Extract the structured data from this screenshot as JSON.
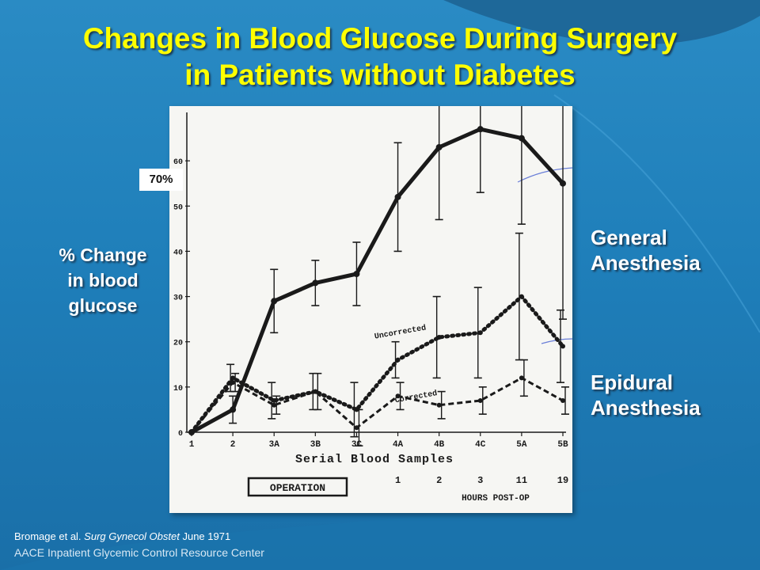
{
  "title_line1": "Changes in Blood Glucose During Surgery",
  "title_line2": "in Patients without Diabetes",
  "ylabel_lines": [
    "% Change",
    "in blood",
    "glucose"
  ],
  "badge": "70%",
  "annotation_general_lines": [
    "General",
    "Anesthesia"
  ],
  "annotation_epidural_lines": [
    "Epidural",
    "Anesthesia"
  ],
  "citation_authors": "Bromage et al.",
  "citation_journal": "Surg Gynecol Obstet",
  "citation_date": "June 1971",
  "center_name": "AACE Inpatient Glycemic Control Resource Center",
  "colors": {
    "title": "#ffff00",
    "background": "#1f7fba",
    "ink": "#1a1a1a"
  },
  "chart_data": {
    "type": "line",
    "categories": [
      "1",
      "2",
      "3A",
      "3B",
      "3C",
      "4A",
      "4B",
      "4C",
      "5A",
      "5B"
    ],
    "xlabel": "Serial Blood Samples",
    "ylim": [
      0,
      70
    ],
    "y_ticks": [
      0,
      10,
      20,
      30,
      40,
      50,
      60
    ],
    "operation_label": "OPERATION",
    "hours_label": "HOURS POST-OP",
    "hours": [
      {
        "category": "4A",
        "label": "1"
      },
      {
        "category": "4B",
        "label": "2"
      },
      {
        "category": "4C",
        "label": "3"
      },
      {
        "category": "5A",
        "label": "11"
      },
      {
        "category": "5B",
        "label": "19"
      }
    ],
    "series": [
      {
        "style": "solid",
        "values": [
          0,
          5,
          29,
          33,
          35,
          52,
          63,
          67,
          65,
          55
        ],
        "errors": [
          0,
          3,
          7,
          5,
          7,
          12,
          16,
          14,
          19,
          30
        ]
      },
      {
        "name": "Uncorrected",
        "style": "dotted",
        "values": [
          0,
          12,
          7,
          9,
          5,
          16,
          21,
          22,
          30,
          19
        ],
        "errors": [
          0,
          3,
          4,
          4,
          6,
          4,
          9,
          10,
          14,
          8
        ]
      },
      {
        "name": "Corrected",
        "style": "dashed",
        "values": [
          0,
          11,
          6,
          9,
          1,
          8,
          6,
          7,
          12,
          7
        ],
        "errors": [
          0,
          2,
          2,
          4,
          4,
          3,
          3,
          3,
          4,
          3
        ]
      }
    ]
  }
}
